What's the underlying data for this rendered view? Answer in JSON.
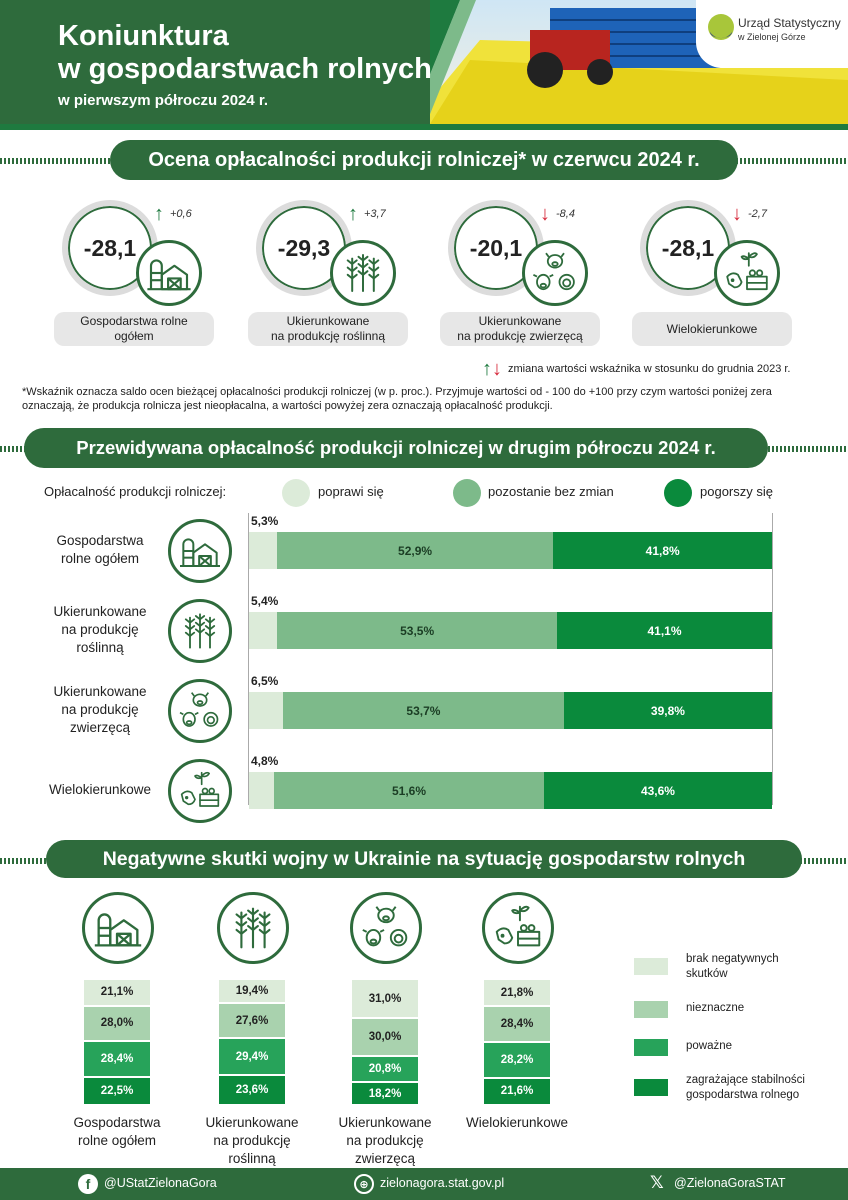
{
  "header": {
    "title_line1": "Koniunktura",
    "title_line2": "w gospodarstwach rolnych",
    "subtitle": "w pierwszym półroczu 2024 r.",
    "logo_line1": "Urząd Statystyczny",
    "logo_line2": "w Zielonej Górze"
  },
  "colors": {
    "dark_green": "#2e6b3c",
    "light": "#dcebd9",
    "mid": "#7dba8a",
    "strong": "#27a35a",
    "darkest": "#0a8a3c",
    "up": "#1e7a3f",
    "down": "#d6283a"
  },
  "section1": {
    "title": "Ocena opłacalności produkcji rolniczej* w czerwcu 2024 r.",
    "cards": [
      {
        "value": "-28,1",
        "delta": "+0,6",
        "direction": "up",
        "label_line1": "Gospodarstwa rolne",
        "label_line2": "ogółem",
        "icon": "farm-barn-icon"
      },
      {
        "value": "-29,3",
        "delta": "+3,7",
        "direction": "up",
        "label_line1": "Ukierunkowane",
        "label_line2": "na produkcję roślinną",
        "icon": "wheat-icon"
      },
      {
        "value": "-20,1",
        "delta": "-8,4",
        "direction": "down",
        "label_line1": "Ukierunkowane",
        "label_line2": "na produkcję zwierzęcą",
        "icon": "livestock-icon"
      },
      {
        "value": "-28,1",
        "delta": "-2,7",
        "direction": "down",
        "label_line1": "Wielokierunkowe",
        "label_line2": "",
        "icon": "mixed-farming-icon"
      }
    ],
    "legend_note": "zmiana wartości wskaźnika w stosunku do grudnia 2023 r.",
    "footnote": "*Wskaźnik oznacza saldo ocen bieżącej opłacalności produkcji rolniczej (w p. proc.). Przyjmuje wartości od - 100 do +100 przy czym wartości poniżej zera oznaczają, że produkcja rolnicza jest nieopłacalna, a wartości powyżej zera oznaczają opłacalność produkcji."
  },
  "section2": {
    "title": "Przewidywana opłacalność produkcji rolniczej w drugim półroczu 2024 r.",
    "legend_prefix": "Opłacalność produkcji rolniczej:",
    "legend": [
      "poprawi się",
      "pozostanie bez zmian",
      "pogorszy się"
    ],
    "rows": [
      {
        "label_lines": [
          "Gospodarstwa",
          "rolne ogółem"
        ],
        "icon": "farm-barn-icon"
      },
      {
        "label_lines": [
          "Ukierunkowane",
          "na produkcję",
          "roślinną"
        ],
        "icon": "wheat-icon"
      },
      {
        "label_lines": [
          "Ukierunkowane",
          "na produkcję",
          "zwierzęcą"
        ],
        "icon": "livestock-icon"
      },
      {
        "label_lines": [
          "Wielokierunkowe"
        ],
        "icon": "mixed-farming-icon"
      }
    ]
  },
  "section3": {
    "title": "Negatywne skutki wojny w Ukrainie na sytuację gospodarstw rolnych",
    "columns": [
      {
        "label_lines": [
          "Gospodarstwa",
          "rolne ogółem"
        ],
        "icon": "farm-barn-icon"
      },
      {
        "label_lines": [
          "Ukierunkowane",
          "na produkcję",
          "roślinną"
        ],
        "icon": "wheat-icon"
      },
      {
        "label_lines": [
          "Ukierunkowane",
          "na produkcję",
          "zwierzęcą"
        ],
        "icon": "livestock-icon"
      },
      {
        "label_lines": [
          "Wielokierunkowe"
        ],
        "icon": "mixed-farming-icon"
      }
    ],
    "legend": [
      {
        "lines": [
          "brak negatywnych",
          "skutków"
        ]
      },
      {
        "lines": [
          "nieznaczne"
        ]
      },
      {
        "lines": [
          "poważne"
        ]
      },
      {
        "lines": [
          "zagrażające stabilności",
          "gospodarstwa rolnego"
        ]
      }
    ]
  },
  "footer": {
    "facebook": "@UStatZielonaGora",
    "website": "zielonagora.stat.gov.pl",
    "x": "@ZielonaGoraSTAT"
  },
  "chart_data": [
    {
      "type": "bar",
      "title": "Przewidywana opłacalność produkcji rolniczej w drugim półroczu 2024 r.",
      "orientation": "horizontal-stacked-100",
      "categories": [
        "Gospodarstwa rolne ogółem",
        "Ukierunkowane na produkcję roślinną",
        "Ukierunkowane na produkcję zwierzęcą",
        "Wielokierunkowe"
      ],
      "series": [
        {
          "name": "poprawi się",
          "values": [
            5.3,
            5.4,
            6.5,
            4.8
          ],
          "labels": [
            "5,3%",
            "5,4%",
            "6,5%",
            "4,8%"
          ]
        },
        {
          "name": "pozostanie bez zmian",
          "values": [
            52.9,
            53.5,
            53.7,
            51.6
          ],
          "labels": [
            "52,9%",
            "53,5%",
            "53,7%",
            "51,6%"
          ]
        },
        {
          "name": "pogorszy się",
          "values": [
            41.8,
            41.1,
            39.8,
            43.6
          ],
          "labels": [
            "41,8%",
            "41,1%",
            "39,8%",
            "43,6%"
          ]
        }
      ]
    },
    {
      "type": "bar",
      "title": "Negatywne skutki wojny w Ukrainie na sytuację gospodarstw rolnych",
      "orientation": "vertical-stacked-100",
      "categories": [
        "Gospodarstwa rolne ogółem",
        "Ukierunkowane na produkcję roślinną",
        "Ukierunkowane na produkcję zwierzęcą",
        "Wielokierunkowe"
      ],
      "series": [
        {
          "name": "brak negatywnych skutków",
          "values": [
            21.1,
            19.4,
            31.0,
            21.8
          ],
          "labels": [
            "21,1%",
            "19,4%",
            "31,0%",
            "21,8%"
          ]
        },
        {
          "name": "nieznaczne",
          "values": [
            28.0,
            27.6,
            30.0,
            28.4
          ],
          "labels": [
            "28,0%",
            "27,6%",
            "30,0%",
            "28,4%"
          ]
        },
        {
          "name": "poważne",
          "values": [
            28.4,
            29.4,
            20.8,
            28.2
          ],
          "labels": [
            "28,4%",
            "29,4%",
            "20,8%",
            "28,2%"
          ]
        },
        {
          "name": "zagrażające stabilności gospodarstwa rolnego",
          "values": [
            22.5,
            23.6,
            18.2,
            21.6
          ],
          "labels": [
            "22,5%",
            "23,6%",
            "18,2%",
            "21,6%"
          ]
        }
      ]
    }
  ]
}
